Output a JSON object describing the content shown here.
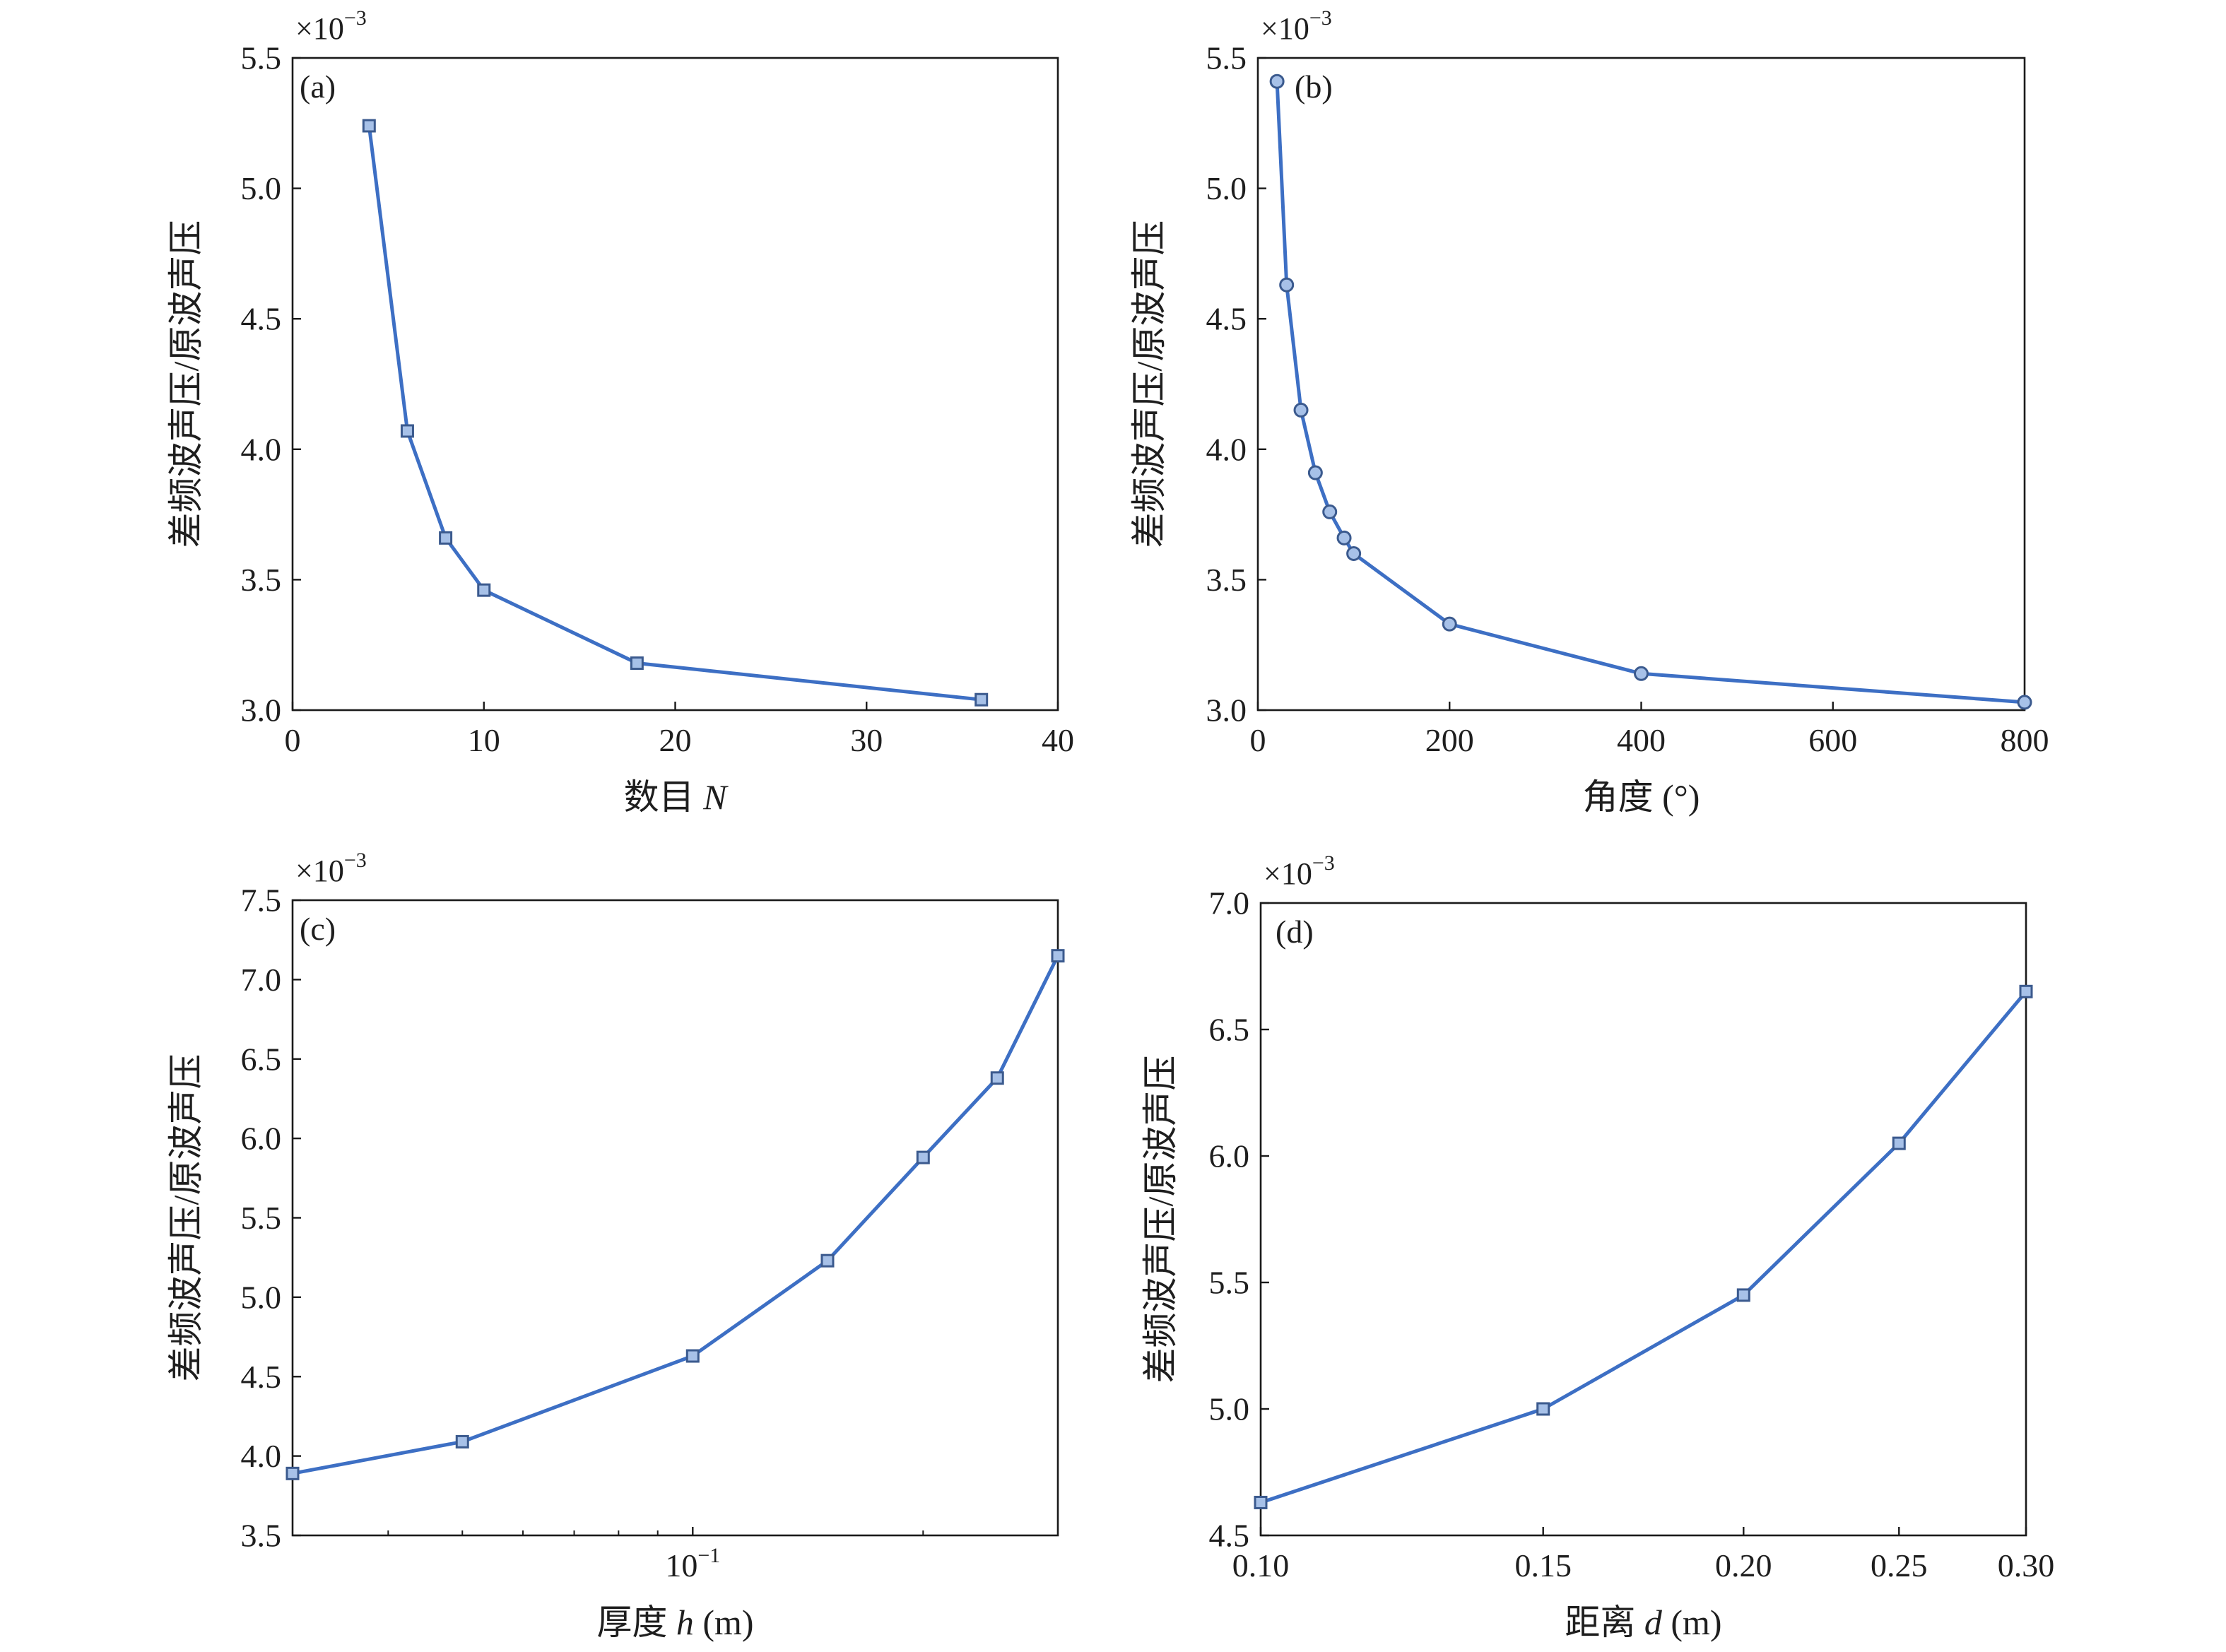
{
  "style": {
    "line_color": "#3d6fc4",
    "marker_edge": "#3b5a8e",
    "marker_fill": "#a7c1e8",
    "axis_color": "#1a1a1a",
    "text_color": "#1e1e1e"
  },
  "chart_data": [
    {
      "type": "line",
      "panel_label": "(a)",
      "y_multiplier": {
        "base": "×10",
        "exponent": "−3"
      },
      "ylabel": "差频波声压/原波声压",
      "xlabel": [
        {
          "text": "数目 "
        },
        {
          "text": "N",
          "italic": true
        }
      ],
      "xscale": "linear",
      "xlim": [
        0,
        40
      ],
      "ylim": [
        3.0,
        5.5
      ],
      "x_minor_ticks": false,
      "xticks": [
        {
          "value": 0,
          "label": "0"
        },
        {
          "value": 10,
          "label": "10"
        },
        {
          "value": 20,
          "label": "20"
        },
        {
          "value": 30,
          "label": "30"
        },
        {
          "value": 40,
          "label": "40"
        }
      ],
      "yticks": [
        {
          "value": 3.0,
          "label": "3.0"
        },
        {
          "value": 3.5,
          "label": "3.5"
        },
        {
          "value": 4.0,
          "label": "4.0"
        },
        {
          "value": 4.5,
          "label": "4.5"
        },
        {
          "value": 5.0,
          "label": "5.0"
        },
        {
          "value": 5.5,
          "label": "5.5"
        }
      ],
      "marker": "square",
      "x": [
        4,
        6,
        8,
        10,
        18,
        36
      ],
      "y": [
        5.24,
        4.07,
        3.66,
        3.46,
        3.18,
        3.04
      ]
    },
    {
      "type": "line",
      "panel_label": "(b)",
      "y_multiplier": {
        "base": "×10",
        "exponent": "−3"
      },
      "ylabel": "差频波声压/原波声压",
      "xlabel": [
        {
          "text": "角度 (°)"
        }
      ],
      "xscale": "linear",
      "xlim": [
        0,
        800
      ],
      "ylim": [
        3.0,
        5.5
      ],
      "x_minor_ticks": false,
      "xticks": [
        {
          "value": 0,
          "label": "0"
        },
        {
          "value": 200,
          "label": "200"
        },
        {
          "value": 400,
          "label": "400"
        },
        {
          "value": 600,
          "label": "600"
        },
        {
          "value": 800,
          "label": "800"
        }
      ],
      "yticks": [
        {
          "value": 3.0,
          "label": "3.0"
        },
        {
          "value": 3.5,
          "label": "3.5"
        },
        {
          "value": 4.0,
          "label": "4.0"
        },
        {
          "value": 4.5,
          "label": "4.5"
        },
        {
          "value": 5.0,
          "label": "5.0"
        },
        {
          "value": 5.5,
          "label": "5.5"
        }
      ],
      "marker": "circle",
      "x": [
        20,
        30,
        45,
        60,
        75,
        90,
        100,
        200,
        400,
        800
      ],
      "y": [
        5.41,
        4.63,
        4.15,
        3.91,
        3.76,
        3.66,
        3.6,
        3.33,
        3.14,
        3.03
      ]
    },
    {
      "type": "line",
      "panel_label": "(c)",
      "y_multiplier": {
        "base": "×10",
        "exponent": "−3"
      },
      "ylabel": "差频波声压/原波声压",
      "xlabel": [
        {
          "text": "厚度 "
        },
        {
          "text": "h",
          "italic": true
        },
        {
          "text": " (m)"
        }
      ],
      "xscale": "log",
      "xlim": [
        0.03,
        0.3
      ],
      "ylim": [
        3.5,
        7.5
      ],
      "x_minor_ticks": true,
      "xticks": [
        {
          "value": 0.1,
          "label_base": "10",
          "label_exponent": "−1"
        }
      ],
      "yticks": [
        {
          "value": 3.5,
          "label": "3.5"
        },
        {
          "value": 4.0,
          "label": "4.0"
        },
        {
          "value": 4.5,
          "label": "4.5"
        },
        {
          "value": 5.0,
          "label": "5.0"
        },
        {
          "value": 5.5,
          "label": "5.5"
        },
        {
          "value": 6.0,
          "label": "6.0"
        },
        {
          "value": 6.5,
          "label": "6.5"
        },
        {
          "value": 7.0,
          "label": "7.0"
        },
        {
          "value": 7.5,
          "label": "7.5"
        }
      ],
      "marker": "square",
      "x": [
        0.03,
        0.05,
        0.1,
        0.15,
        0.2,
        0.25,
        0.3
      ],
      "y": [
        3.89,
        4.09,
        4.63,
        5.23,
        5.88,
        6.38,
        7.15
      ]
    },
    {
      "type": "line",
      "panel_label": "(d)",
      "y_multiplier": {
        "base": "×10",
        "exponent": "−3"
      },
      "ylabel": "差频波声压/原波声压",
      "xlabel": [
        {
          "text": "距离 "
        },
        {
          "text": "d",
          "italic": true
        },
        {
          "text": " (m)"
        }
      ],
      "xscale": "log",
      "xlim": [
        0.1,
        0.3
      ],
      "ylim": [
        4.5,
        7.0
      ],
      "x_minor_ticks": false,
      "xticks": [
        {
          "value": 0.1,
          "label": "0.10"
        },
        {
          "value": 0.15,
          "label": "0.15"
        },
        {
          "value": 0.2,
          "label": "0.20"
        },
        {
          "value": 0.25,
          "label": "0.25"
        },
        {
          "value": 0.3,
          "label": "0.30"
        }
      ],
      "yticks": [
        {
          "value": 4.5,
          "label": "4.5"
        },
        {
          "value": 5.0,
          "label": "5.0"
        },
        {
          "value": 5.5,
          "label": "5.5"
        },
        {
          "value": 6.0,
          "label": "6.0"
        },
        {
          "value": 6.5,
          "label": "6.5"
        },
        {
          "value": 7.0,
          "label": "7.0"
        }
      ],
      "marker": "square",
      "x": [
        0.1,
        0.15,
        0.2,
        0.25,
        0.3
      ],
      "y": [
        4.63,
        5.0,
        5.45,
        6.05,
        6.65
      ]
    }
  ]
}
